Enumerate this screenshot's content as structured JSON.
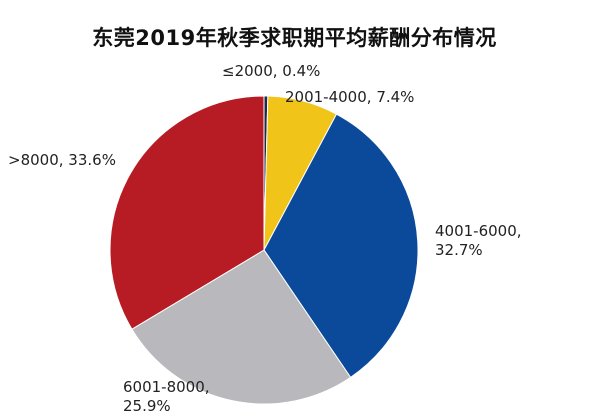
{
  "chart_data": {
    "type": "pie",
    "title": "东莞2019年秋季求职期平均薪酬分布情况",
    "slices": [
      {
        "label": "≤2000",
        "value": 0.4,
        "value_text": "0.4%",
        "color": "#1f2a44"
      },
      {
        "label": "2001-4000",
        "value": 7.4,
        "value_text": "7.4%",
        "color": "#f0c419"
      },
      {
        "label": "4001-6000",
        "value": 32.7,
        "value_text": "32.7%",
        "color": "#0b4a9a"
      },
      {
        "label": "6001-8000",
        "value": 25.9,
        "value_text": "25.9%",
        "color": "#b9b9bd"
      },
      {
        "label": ">8000",
        "value": 33.6,
        "value_text": "33.6%",
        "color": "#b71c25"
      }
    ],
    "start_angle_deg": 0,
    "direction": "clockwise",
    "legend": "none"
  }
}
